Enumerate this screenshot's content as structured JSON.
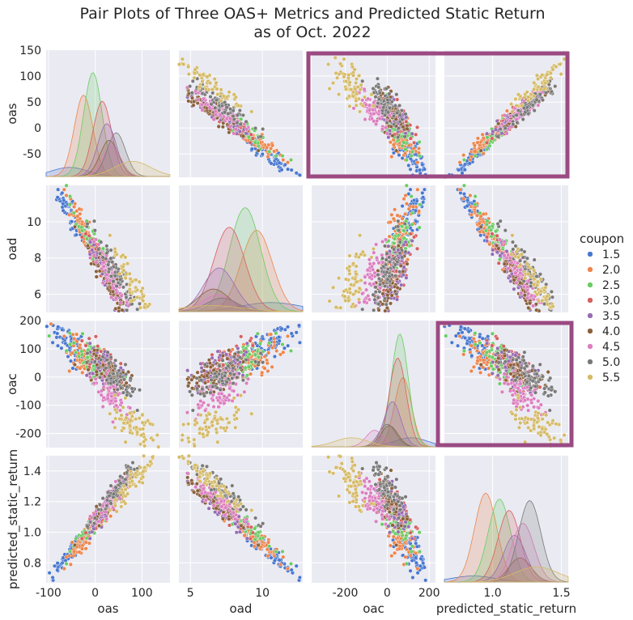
{
  "title_line1": "Pair Plots of Three OAS+ Metrics and Predicted Static Return",
  "title_line2": "as of Oct. 2022",
  "legend": {
    "title": "coupon",
    "entries": [
      {
        "label": "1.5",
        "color": "#4878d0"
      },
      {
        "label": "2.0",
        "color": "#ee854a"
      },
      {
        "label": "2.5",
        "color": "#6acc64"
      },
      {
        "label": "3.0",
        "color": "#d65f5f"
      },
      {
        "label": "3.5",
        "color": "#956cb4"
      },
      {
        "label": "4.0",
        "color": "#8c613c"
      },
      {
        "label": "4.5",
        "color": "#dc7ec0"
      },
      {
        "label": "5.0",
        "color": "#797979"
      },
      {
        "label": "5.5",
        "color": "#d5bb67"
      }
    ]
  },
  "highlight_color": "#9b4a82",
  "chart_data": {
    "type": "scatter",
    "subtype": "pairplot",
    "variables": [
      "oas",
      "oad",
      "oac",
      "predicted_static_return"
    ],
    "axes": {
      "oas": {
        "range": [
          -95,
          150
        ],
        "ticks": [
          -50,
          0,
          50,
          100,
          150
        ],
        "x_ticks": [
          -100,
          0,
          100
        ],
        "x_range": [
          -105,
          160
        ]
      },
      "oad": {
        "range": [
          5,
          12
        ],
        "ticks": [
          6,
          8,
          10
        ],
        "x_ticks": [
          5,
          10
        ],
        "x_range": [
          4.2,
          12.8
        ]
      },
      "oac": {
        "range": [
          -250,
          200
        ],
        "ticks": [
          -200,
          -100,
          0,
          100,
          200
        ],
        "x_ticks": [
          -200,
          0,
          200
        ],
        "x_range": [
          -360,
          230
        ]
      },
      "predicted_static_return": {
        "range": [
          0.67,
          1.5
        ],
        "ticks": [
          0.8,
          1.0,
          1.2,
          1.4
        ],
        "x_ticks": [
          1.0,
          1.5
        ],
        "x_range": [
          0.65,
          1.55
        ]
      }
    },
    "hue": "coupon",
    "coupons": [
      {
        "coupon": "1.5",
        "oas": -55,
        "oad": 10.6,
        "oac": 115,
        "ret": 0.86,
        "kde_oas_peak": 12,
        "kde_oad_peak": 12,
        "kde_oac_peak": 12,
        "kde_ret_peak": 8
      },
      {
        "coupon": "2.0",
        "oas": -25,
        "oad": 9.6,
        "oac": 75,
        "ret": 0.95,
        "kde_oas_peak": 108,
        "kde_oad_peak": 108,
        "kde_oac_peak": 92,
        "kde_ret_peak": 118
      },
      {
        "coupon": "2.5",
        "oas": -5,
        "oad": 8.8,
        "oac": 60,
        "ret": 1.05,
        "kde_oas_peak": 138,
        "kde_oad_peak": 138,
        "kde_oac_peak": 150,
        "kde_ret_peak": 110
      },
      {
        "coupon": "3.0",
        "oas": 15,
        "oad": 7.7,
        "oac": 50,
        "ret": 1.12,
        "kde_oas_peak": 100,
        "kde_oad_peak": 112,
        "kde_oac_peak": 118,
        "kde_ret_peak": 95
      },
      {
        "coupon": "3.5",
        "oas": 25,
        "oad": 7.0,
        "oac": 25,
        "ret": 1.16,
        "kde_oas_peak": 70,
        "kde_oad_peak": 58,
        "kde_oac_peak": 60,
        "kde_ret_peak": 62
      },
      {
        "coupon": "4.0",
        "oas": 30,
        "oad": 6.6,
        "oac": 10,
        "ret": 1.2,
        "kde_oas_peak": 48,
        "kde_oad_peak": 30,
        "kde_oac_peak": 28,
        "kde_ret_peak": 32
      },
      {
        "coupon": "4.5",
        "oas": 35,
        "oad": 6.9,
        "oac": -60,
        "ret": 1.22,
        "kde_oas_peak": 40,
        "kde_oad_peak": 22,
        "kde_oac_peak": 22,
        "kde_ret_peak": 78
      },
      {
        "coupon": "5.0",
        "oas": 45,
        "oad": 7.2,
        "oac": 0,
        "ret": 1.27,
        "kde_oas_peak": 58,
        "kde_oad_peak": 18,
        "kde_oac_peak": 30,
        "kde_ret_peak": 108
      },
      {
        "coupon": "5.5",
        "oas": 80,
        "oad": 6.5,
        "oac": -170,
        "ret": 1.32,
        "kde_oas_peak": 20,
        "kde_oad_peak": 8,
        "kde_oac_peak": 12,
        "kde_ret_peak": 20
      }
    ],
    "highlighted_panels": [
      [
        "oas",
        "oac"
      ],
      [
        "oas",
        "predicted_static_return"
      ],
      [
        "oac",
        "predicted_static_return"
      ]
    ],
    "legend_position": "right"
  }
}
